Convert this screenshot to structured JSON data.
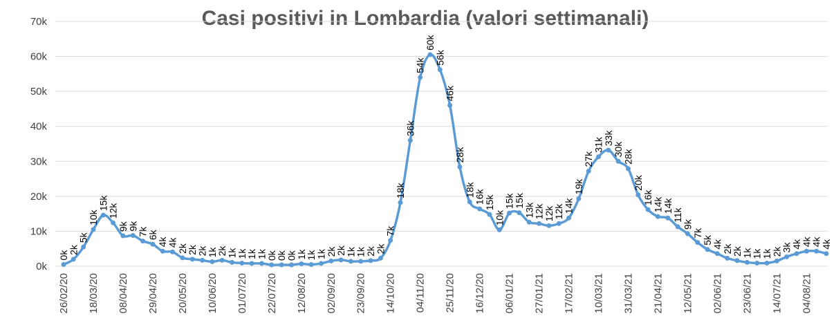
{
  "chart_data": {
    "type": "line",
    "title": "Casi positivi in Lombardia (valori settimanali)",
    "categories": [
      "26/02/20",
      null,
      null,
      "18/03/20",
      null,
      null,
      "08/04/20",
      null,
      null,
      "29/04/20",
      null,
      null,
      "20/05/20",
      null,
      null,
      "10/06/20",
      null,
      null,
      "01/07/20",
      null,
      null,
      "22/07/20",
      null,
      null,
      "12/08/20",
      null,
      null,
      "02/09/20",
      null,
      null,
      "23/09/20",
      null,
      null,
      "14/10/20",
      null,
      null,
      "04/11/20",
      null,
      null,
      "25/11/20",
      null,
      null,
      "16/12/20",
      null,
      null,
      "06/01/21",
      null,
      null,
      "27/01/21",
      null,
      null,
      "17/02/21",
      null,
      null,
      "10/03/21",
      null,
      null,
      "31/03/21",
      null,
      null,
      "21/04/21",
      null,
      null,
      "12/05/21",
      null,
      null,
      "02/06/21",
      null,
      null,
      "23/06/21",
      null,
      null,
      "14/07/21",
      null,
      null,
      "04/08/21",
      null,
      null
    ],
    "series": [
      {
        "name": "Casi positivi",
        "color": "#5b9bd5",
        "values": [
          500,
          2000,
          5500,
          10500,
          14600,
          12400,
          8700,
          8800,
          7200,
          6300,
          4300,
          4100,
          2400,
          2000,
          1700,
          1300,
          1700,
          1100,
          900,
          800,
          800,
          400,
          400,
          400,
          700,
          500,
          800,
          1500,
          1800,
          1400,
          1400,
          1600,
          2300,
          7400,
          18200,
          36000,
          54000,
          60500,
          56200,
          46000,
          28400,
          18400,
          16400,
          14800,
          10400,
          15200,
          15300,
          12600,
          12200,
          11600,
          12200,
          13800,
          19300,
          27200,
          31300,
          33200,
          30000,
          27900,
          20400,
          16200,
          14200,
          13800,
          11300,
          9300,
          6800,
          4800,
          3600,
          2300,
          1600,
          1100,
          900,
          900,
          1500,
          2700,
          3600,
          4300,
          4300,
          3600
        ],
        "value_labels": [
          "0k",
          "2k",
          "5k",
          "10k",
          "15k",
          "12k",
          "9k",
          "9k",
          "7k",
          "6k",
          "4k",
          "4k",
          "2k",
          "2k",
          "2k",
          "1k",
          "2k",
          "1k",
          "1k",
          "1k",
          "1k",
          "0k",
          "0k",
          "0k",
          "1k",
          "1k",
          "1k",
          "2k",
          "2k",
          "1k",
          "1k",
          "2k",
          "2k",
          "7k",
          "18k",
          "36k",
          "54k",
          "60k",
          "56k",
          "46k",
          "28k",
          "18k",
          "16k",
          "15k",
          "10k",
          "15k",
          "15k",
          "13k",
          "12k",
          "12k",
          "12k",
          "14k",
          "19k",
          "27k",
          "31k",
          "33k",
          "30k",
          "28k",
          "20k",
          "16k",
          "14k",
          "14k",
          "11k",
          "9k",
          "7k",
          "5k",
          "4k",
          "2k",
          "2k",
          "1k",
          "1k",
          "1k",
          "2k",
          "3k",
          "4k",
          "4k",
          "4k",
          "4k"
        ]
      }
    ],
    "ylim": [
      0,
      70000
    ],
    "yticks": [
      {
        "value": 0,
        "label": "0k"
      },
      {
        "value": 10000,
        "label": "10k"
      },
      {
        "value": 20000,
        "label": "20k"
      },
      {
        "value": 30000,
        "label": "30k"
      },
      {
        "value": 40000,
        "label": "40k"
      },
      {
        "value": 50000,
        "label": "50k"
      },
      {
        "value": 60000,
        "label": "60k"
      },
      {
        "value": 70000,
        "label": "70k"
      }
    ],
    "grid": true
  }
}
